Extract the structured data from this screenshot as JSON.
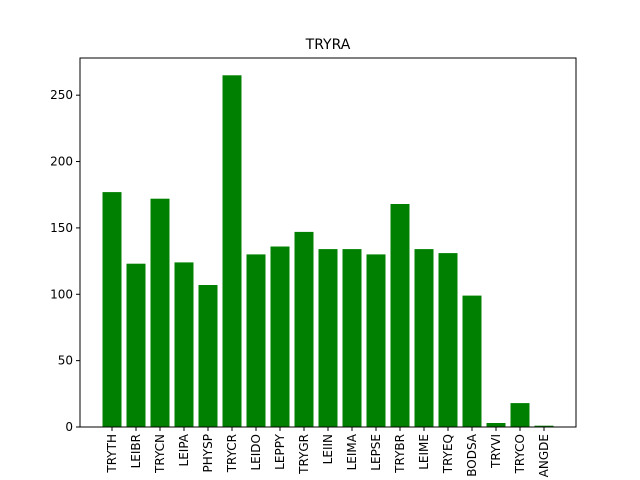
{
  "chart_data": {
    "type": "bar",
    "title": "TRYRA",
    "xlabel": "",
    "ylabel": "",
    "categories": [
      "TRYTH",
      "LEIBR",
      "TRYCN",
      "LEIPA",
      "PHYSP",
      "TRYCR",
      "LEIDO",
      "LEPPY",
      "TRYGR",
      "LEIIN",
      "LEIMA",
      "LEPSE",
      "TRYBR",
      "LEIME",
      "TRYEQ",
      "BODSA",
      "TRYVI",
      "TRYCO",
      "ANGDE"
    ],
    "values": [
      177,
      123,
      172,
      124,
      107,
      265,
      130,
      136,
      147,
      134,
      134,
      130,
      168,
      134,
      131,
      99,
      3,
      18,
      1
    ],
    "ylim": [
      0,
      278
    ],
    "yticks": [
      0,
      50,
      100,
      150,
      200,
      250
    ],
    "bar_color": "#008000",
    "grid": false,
    "legend": "none"
  }
}
